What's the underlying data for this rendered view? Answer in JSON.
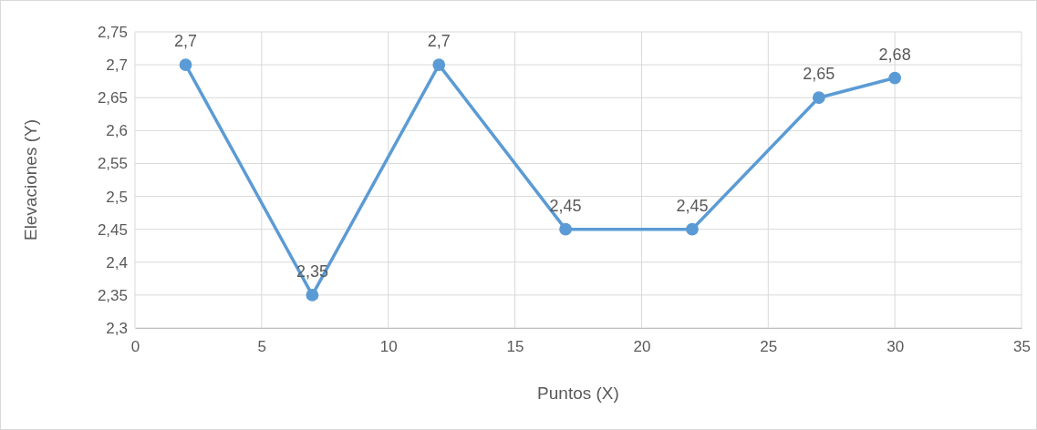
{
  "chart_data": {
    "type": "line",
    "xlabel": "Puntos (X)",
    "ylabel": "Elevaciones (Y)",
    "x": [
      2,
      7,
      12,
      17,
      22,
      27,
      30
    ],
    "series": [
      {
        "color": "#5b9bd5",
        "values": [
          2.7,
          2.35,
          2.7,
          2.45,
          2.45,
          2.65,
          2.68
        ],
        "value_labels": [
          "2,7",
          "2,35",
          "2,7",
          "2,45",
          "2,45",
          "2,65",
          "2,68"
        ]
      }
    ],
    "xlim": [
      0,
      35
    ],
    "xticks": [
      0,
      5,
      10,
      15,
      20,
      25,
      30,
      35
    ],
    "ylim": [
      2.3,
      2.75
    ],
    "yticks": [
      {
        "value": 2.3,
        "label": "2,3"
      },
      {
        "value": 2.35,
        "label": "2,35"
      },
      {
        "value": 2.4,
        "label": "2,4"
      },
      {
        "value": 2.45,
        "label": "2,45"
      },
      {
        "value": 2.5,
        "label": "2,5"
      },
      {
        "value": 2.55,
        "label": "2,55"
      },
      {
        "value": 2.6,
        "label": "2,6"
      },
      {
        "value": 2.65,
        "label": "2,65"
      },
      {
        "value": 2.7,
        "label": "2,7"
      },
      {
        "value": 2.75,
        "label": "2,75"
      }
    ],
    "grid": true,
    "marker": "circle",
    "line_style": "solid"
  }
}
